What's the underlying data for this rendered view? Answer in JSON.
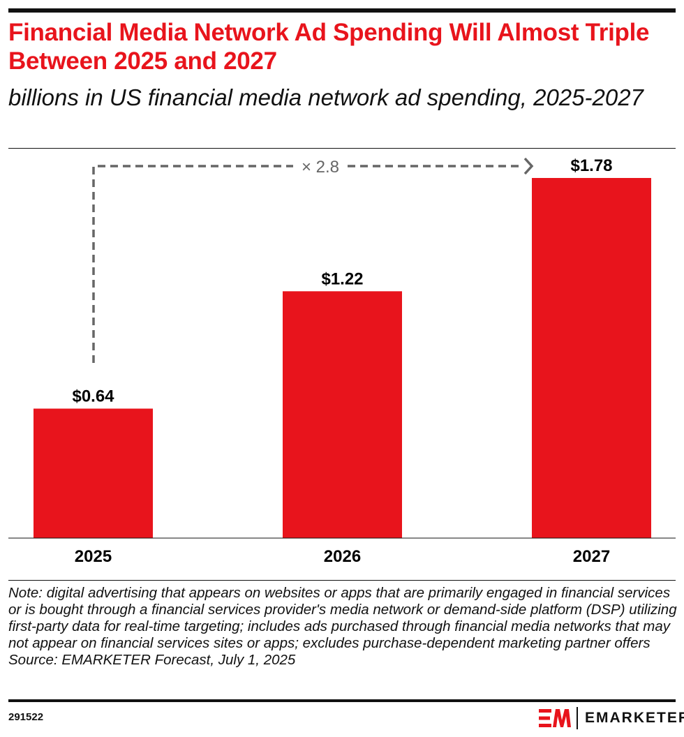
{
  "title": "Financial Media Network Ad Spending Will Almost Triple Between 2025 and 2027",
  "subtitle": "billions in US financial media network ad spending, 2025-2027",
  "chart_data": {
    "type": "bar",
    "categories": [
      "2025",
      "2026",
      "2027"
    ],
    "values": [
      0.64,
      1.22,
      1.78
    ],
    "data_labels": [
      "$0.64",
      "$1.22",
      "$1.78"
    ],
    "annotation": "× 2.8",
    "ylim": [
      0,
      1.78
    ],
    "grid": false,
    "bar_color": "#E8141C"
  },
  "note": "Note: digital advertising that appears on websites or apps that are primarily engaged in financial services or is bought through a financial services provider's media network or demand-side platform (DSP) utilizing first-party data for real-time targeting; includes ads purchased through financial media networks that may not appear on financial services sites or apps; excludes purchase-dependent marketing partner offers",
  "source": "Source: EMARKETER Forecast, July 1, 2025",
  "chart_id": "291522",
  "brand": "EMARKETER"
}
